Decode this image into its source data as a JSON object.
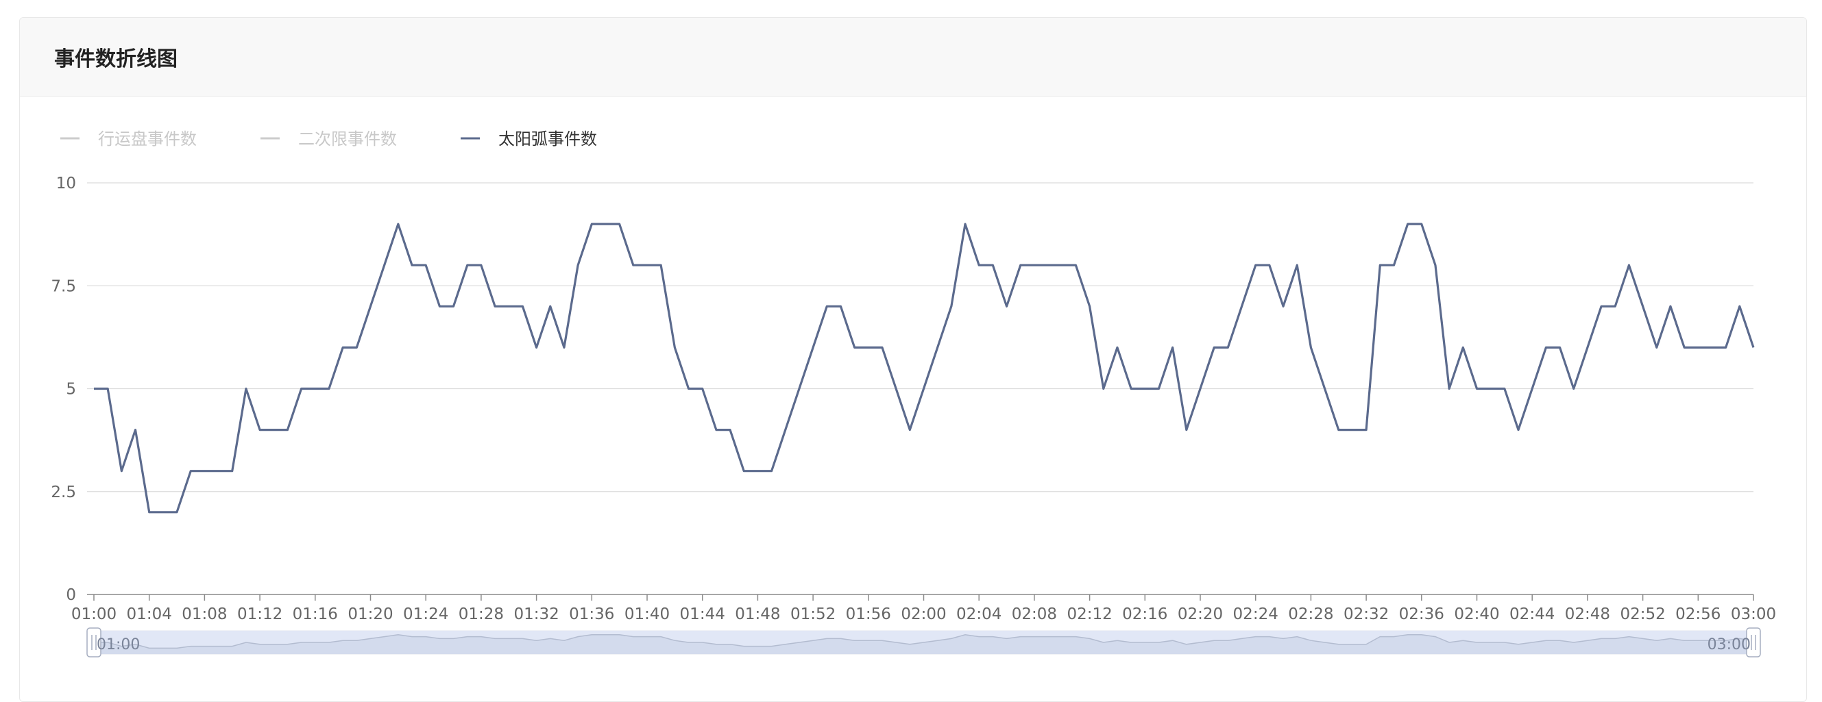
{
  "panel": {
    "title": "事件数折线图"
  },
  "chart_data": {
    "type": "line",
    "legend": [
      {
        "name": "行运盘事件数",
        "active": false,
        "color": "#cccccc"
      },
      {
        "name": "二次限事件数",
        "active": false,
        "color": "#cccccc"
      },
      {
        "name": "太阳弧事件数",
        "active": true,
        "color": "#5b6a8d"
      }
    ],
    "legend_placement": "top-left",
    "x_ticks": [
      "01:00",
      "01:04",
      "01:08",
      "01:12",
      "01:16",
      "01:20",
      "01:24",
      "01:28",
      "01:32",
      "01:36",
      "01:40",
      "01:44",
      "01:48",
      "01:52",
      "01:56",
      "02:00",
      "02:04",
      "02:08",
      "02:12",
      "02:16",
      "02:20",
      "02:24",
      "02:28",
      "02:32",
      "02:36",
      "02:40",
      "02:44",
      "02:48",
      "02:52",
      "02:56",
      "03:00"
    ],
    "y_ticks": [
      "0",
      "2.5",
      "5",
      "7.5",
      "10"
    ],
    "ylim": [
      0,
      10
    ],
    "x_start_minute": 0,
    "x_step_minutes": 1,
    "grid": true,
    "series": [
      {
        "name": "太阳弧事件数",
        "color": "#5b6a8d",
        "values": [
          5,
          5,
          3,
          4,
          2,
          2,
          2,
          3,
          3,
          3,
          3,
          5,
          4,
          4,
          4,
          5,
          5,
          5,
          6,
          6,
          7,
          8,
          9,
          8,
          8,
          7,
          7,
          8,
          8,
          7,
          7,
          7,
          6,
          7,
          6,
          8,
          9,
          9,
          9,
          8,
          8,
          8,
          6,
          5,
          5,
          4,
          4,
          3,
          3,
          3,
          4,
          5,
          6,
          7,
          7,
          6,
          6,
          6,
          5,
          4,
          5,
          6,
          7,
          9,
          8,
          8,
          7,
          8,
          8,
          8,
          8,
          8,
          7,
          5,
          6,
          5,
          5,
          5,
          6,
          4,
          5,
          6,
          6,
          7,
          8,
          8,
          7,
          8,
          6,
          5,
          4,
          4,
          4,
          8,
          8,
          9,
          9,
          8,
          5,
          6,
          5,
          5,
          5,
          4,
          5,
          6,
          6,
          5,
          6,
          7,
          7,
          8,
          7,
          6,
          7,
          6,
          6,
          6,
          6,
          7,
          6
        ]
      }
    ],
    "data_zoom": {
      "start_label": "01:00",
      "end_label": "03:00"
    }
  }
}
